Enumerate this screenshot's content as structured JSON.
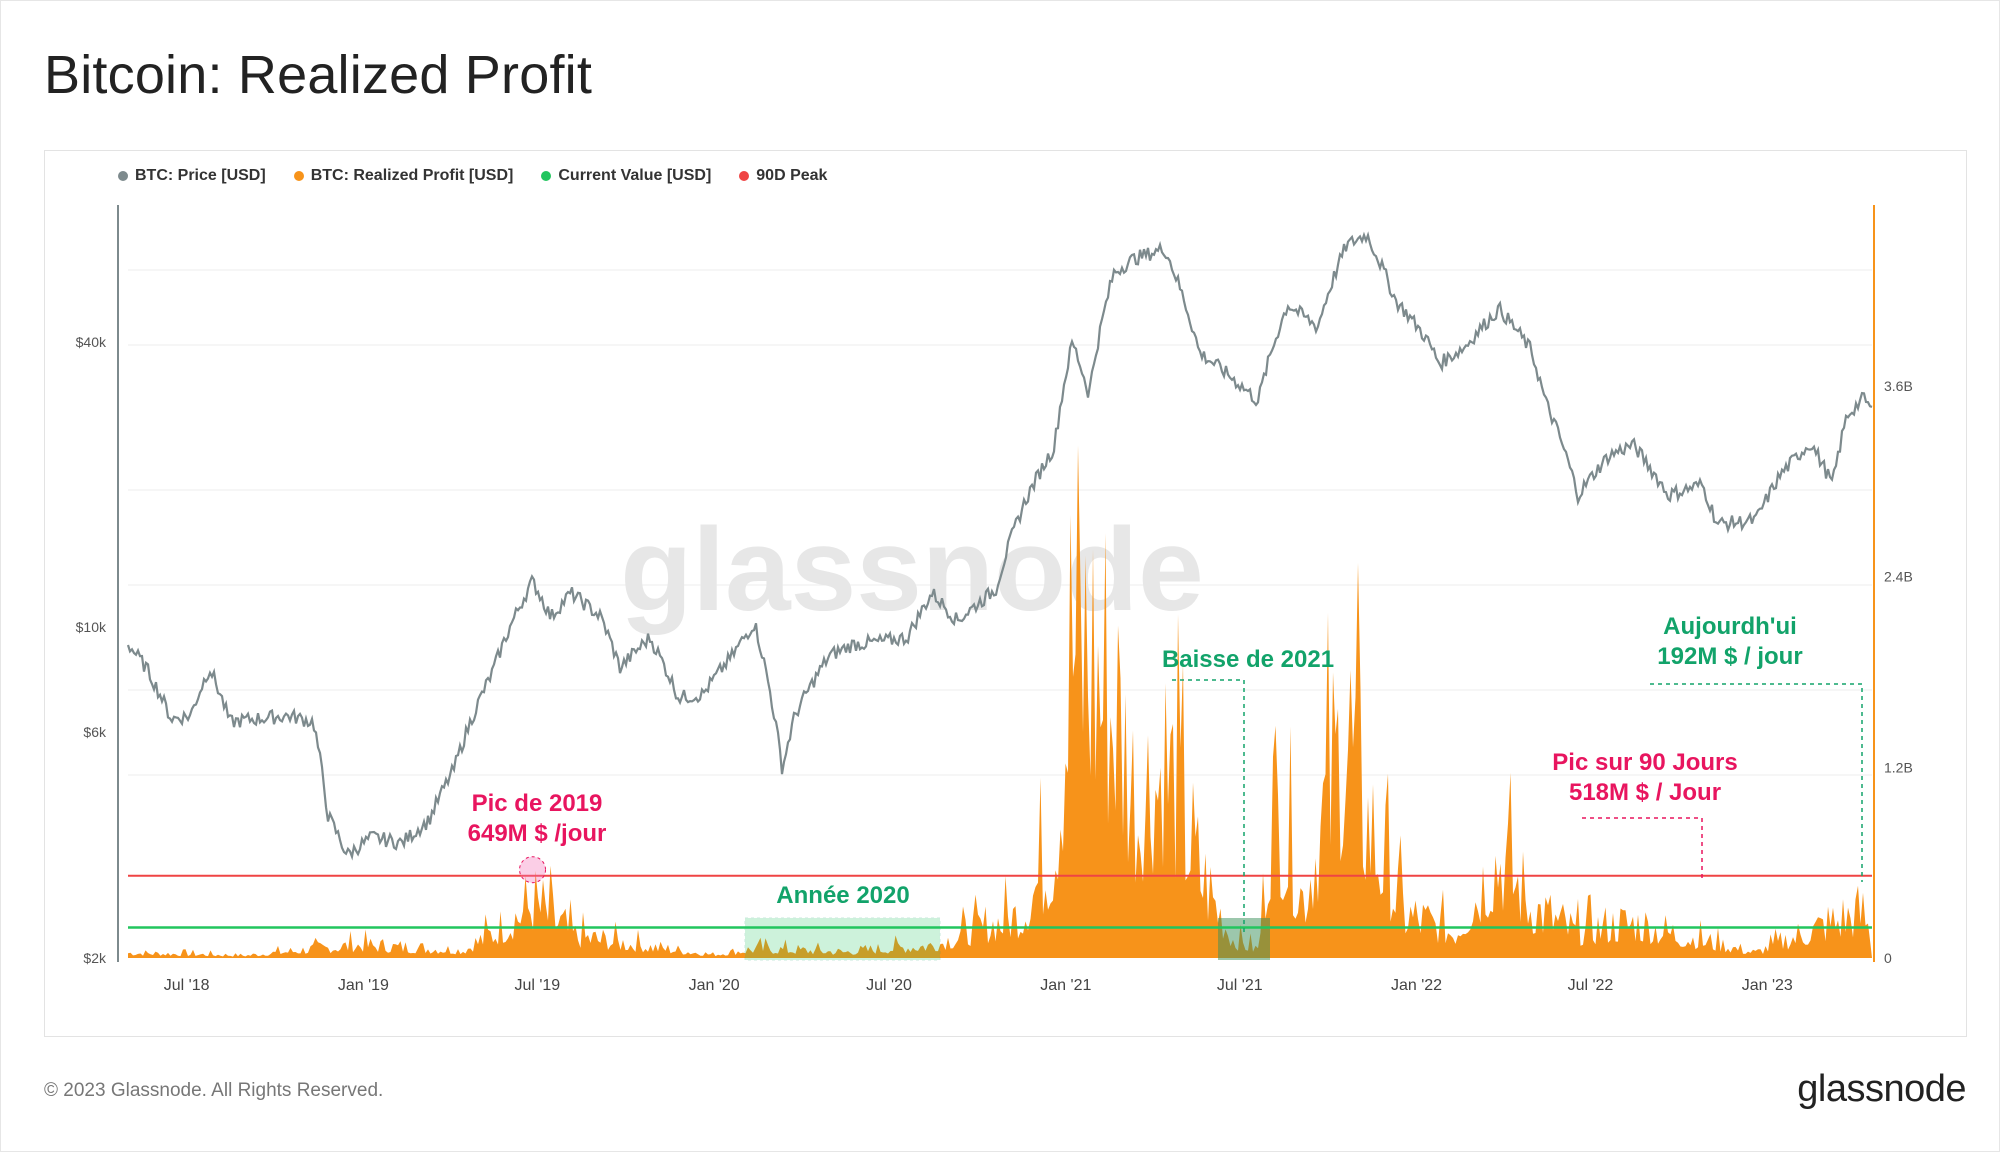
{
  "title": "Bitcoin: Realized Profit",
  "footer": {
    "copyright": "© 2023 Glassnode. All Rights Reserved.",
    "brand": "glassnode"
  },
  "watermark": "glassnode",
  "colors": {
    "price": "#7d8a8d",
    "realized_profit": "#f7931a",
    "current_value": "#22c55e",
    "peak_90d": "#ef4444",
    "annotation_green": "#12a36a",
    "annotation_pink": "#e8155f"
  },
  "chart_data": {
    "type": "line",
    "legend": [
      {
        "name": "BTC: Price [USD]",
        "color": "#7d8a8d"
      },
      {
        "name": "BTC: Realized Profit [USD]",
        "color": "#f7931a"
      },
      {
        "name": "Current Value [USD]",
        "color": "#22c55e"
      },
      {
        "name": "90D Peak",
        "color": "#ef4444"
      }
    ],
    "x_ticks": [
      "Jul '18",
      "Jan '19",
      "Jul '19",
      "Jan '20",
      "Jul '20",
      "Jan '21",
      "Jul '21",
      "Jan '22",
      "Jul '22",
      "Jan '23"
    ],
    "x_range": [
      "2018-05-01",
      "2023-04-20"
    ],
    "y_left": {
      "scale": "log",
      "ticks": [
        "$2k",
        "$6k",
        "$10k",
        "$40k"
      ],
      "tick_values": [
        2000,
        6000,
        10000,
        40000
      ]
    },
    "y_right": {
      "ticks": [
        "0",
        "1.2B",
        "2.4B",
        "3.6B"
      ],
      "tick_values": [
        0,
        1200000000,
        2400000000,
        3600000000
      ]
    },
    "series": [
      {
        "name": "BTC: Price [USD]",
        "points": [
          [
            "2018-05-01",
            9200
          ],
          [
            "2018-05-20",
            8200
          ],
          [
            "2018-06-15",
            6400
          ],
          [
            "2018-07-05",
            6500
          ],
          [
            "2018-07-25",
            8200
          ],
          [
            "2018-08-15",
            6300
          ],
          [
            "2018-09-10",
            6400
          ],
          [
            "2018-10-15",
            6500
          ],
          [
            "2018-11-10",
            6300
          ],
          [
            "2018-11-25",
            4000
          ],
          [
            "2018-12-15",
            3300
          ],
          [
            "2019-01-10",
            3600
          ],
          [
            "2019-02-10",
            3500
          ],
          [
            "2019-03-10",
            3900
          ],
          [
            "2019-04-05",
            5000
          ],
          [
            "2019-05-15",
            8000
          ],
          [
            "2019-06-26",
            12500
          ],
          [
            "2019-07-15",
            10500
          ],
          [
            "2019-08-05",
            11800
          ],
          [
            "2019-09-05",
            10500
          ],
          [
            "2019-09-25",
            8200
          ],
          [
            "2019-10-26",
            9500
          ],
          [
            "2019-11-25",
            7100
          ],
          [
            "2019-12-20",
            7200
          ],
          [
            "2020-01-20",
            8700
          ],
          [
            "2020-02-12",
            10200
          ],
          [
            "2020-03-12",
            5000
          ],
          [
            "2020-03-25",
            6500
          ],
          [
            "2020-04-30",
            8700
          ],
          [
            "2020-05-25",
            9200
          ],
          [
            "2020-06-20",
            9300
          ],
          [
            "2020-07-20",
            9500
          ],
          [
            "2020-08-15",
            11800
          ],
          [
            "2020-09-10",
            10300
          ],
          [
            "2020-10-20",
            12000
          ],
          [
            "2020-11-20",
            18500
          ],
          [
            "2020-12-20",
            24000
          ],
          [
            "2021-01-08",
            40000
          ],
          [
            "2021-01-25",
            31000
          ],
          [
            "2021-02-20",
            56000
          ],
          [
            "2021-03-13",
            60000
          ],
          [
            "2021-04-14",
            63000
          ],
          [
            "2021-05-20",
            38000
          ],
          [
            "2021-06-20",
            34000
          ],
          [
            "2021-07-20",
            30000
          ],
          [
            "2021-08-20",
            48000
          ],
          [
            "2021-09-20",
            43000
          ],
          [
            "2021-10-20",
            64000
          ],
          [
            "2021-11-10",
            67500
          ],
          [
            "2021-12-10",
            49000
          ],
          [
            "2022-01-10",
            41000
          ],
          [
            "2022-01-25",
            36000
          ],
          [
            "2022-02-20",
            39000
          ],
          [
            "2022-03-28",
            47000
          ],
          [
            "2022-04-30",
            38500
          ],
          [
            "2022-05-15",
            30000
          ],
          [
            "2022-06-18",
            19000
          ],
          [
            "2022-07-20",
            23000
          ],
          [
            "2022-08-14",
            24300
          ],
          [
            "2022-09-20",
            19000
          ],
          [
            "2022-10-25",
            20000
          ],
          [
            "2022-11-10",
            16500
          ],
          [
            "2022-12-20",
            16800
          ],
          [
            "2023-01-15",
            21000
          ],
          [
            "2023-02-15",
            24500
          ],
          [
            "2023-03-10",
            20000
          ],
          [
            "2023-03-25",
            28000
          ],
          [
            "2023-04-12",
            30500
          ],
          [
            "2023-04-20",
            28500
          ]
        ]
      },
      {
        "name": "BTC: Realized Profit [USD]",
        "points": [
          [
            "2018-05-01",
            60000000
          ],
          [
            "2018-09-01",
            30000000
          ],
          [
            "2018-12-25",
            150000000
          ],
          [
            "2019-04-15",
            90000000
          ],
          [
            "2019-05-25",
            350000000
          ],
          [
            "2019-06-26",
            649000000
          ],
          [
            "2019-08-10",
            250000000
          ],
          [
            "2019-10-26",
            130000000
          ],
          [
            "2019-12-31",
            40000000
          ],
          [
            "2020-02-15",
            110000000
          ],
          [
            "2020-05-15",
            70000000
          ],
          [
            "2020-08-15",
            150000000
          ],
          [
            "2020-11-15",
            500000000
          ],
          [
            "2020-12-20",
            1300000000
          ],
          [
            "2021-01-08",
            3800000000
          ],
          [
            "2021-02-20",
            3000000000
          ],
          [
            "2021-03-15",
            1800000000
          ],
          [
            "2021-04-14",
            2300000000
          ],
          [
            "2021-05-20",
            1000000000
          ],
          [
            "2021-06-25",
            200000000
          ],
          [
            "2021-07-20",
            100000000
          ],
          [
            "2021-08-05",
            1800000000
          ],
          [
            "2021-09-05",
            700000000
          ],
          [
            "2021-10-20",
            2700000000
          ],
          [
            "2021-11-10",
            1600000000
          ],
          [
            "2021-12-20",
            500000000
          ],
          [
            "2022-02-10",
            300000000
          ],
          [
            "2022-03-28",
            1200000000
          ],
          [
            "2022-04-30",
            600000000
          ],
          [
            "2022-06-15",
            300000000
          ],
          [
            "2022-08-14",
            400000000
          ],
          [
            "2022-10-25",
            200000000
          ],
          [
            "2022-12-20",
            60000000
          ],
          [
            "2023-01-20",
            200000000
          ],
          [
            "2023-03-20",
            450000000
          ],
          [
            "2023-04-12",
            518000000
          ],
          [
            "2023-04-20",
            192000000
          ]
        ]
      },
      {
        "name": "Current Value [USD]",
        "value": 192000000
      },
      {
        "name": "90D Peak",
        "value": 518000000
      }
    ],
    "annotations": [
      {
        "text_lines": [
          "Pic de 2019",
          "649M $ /jour"
        ],
        "color": "pink"
      },
      {
        "text_lines": [
          "Année 2020"
        ],
        "color": "green"
      },
      {
        "text_lines": [
          "Baisse de 2021"
        ],
        "color": "green"
      },
      {
        "text_lines": [
          "Aujourdh'ui",
          "192M $ / jour"
        ],
        "color": "green"
      },
      {
        "text_lines": [
          "Pic sur 90 Jours",
          "518M $ / Jour"
        ],
        "color": "pink"
      }
    ]
  }
}
